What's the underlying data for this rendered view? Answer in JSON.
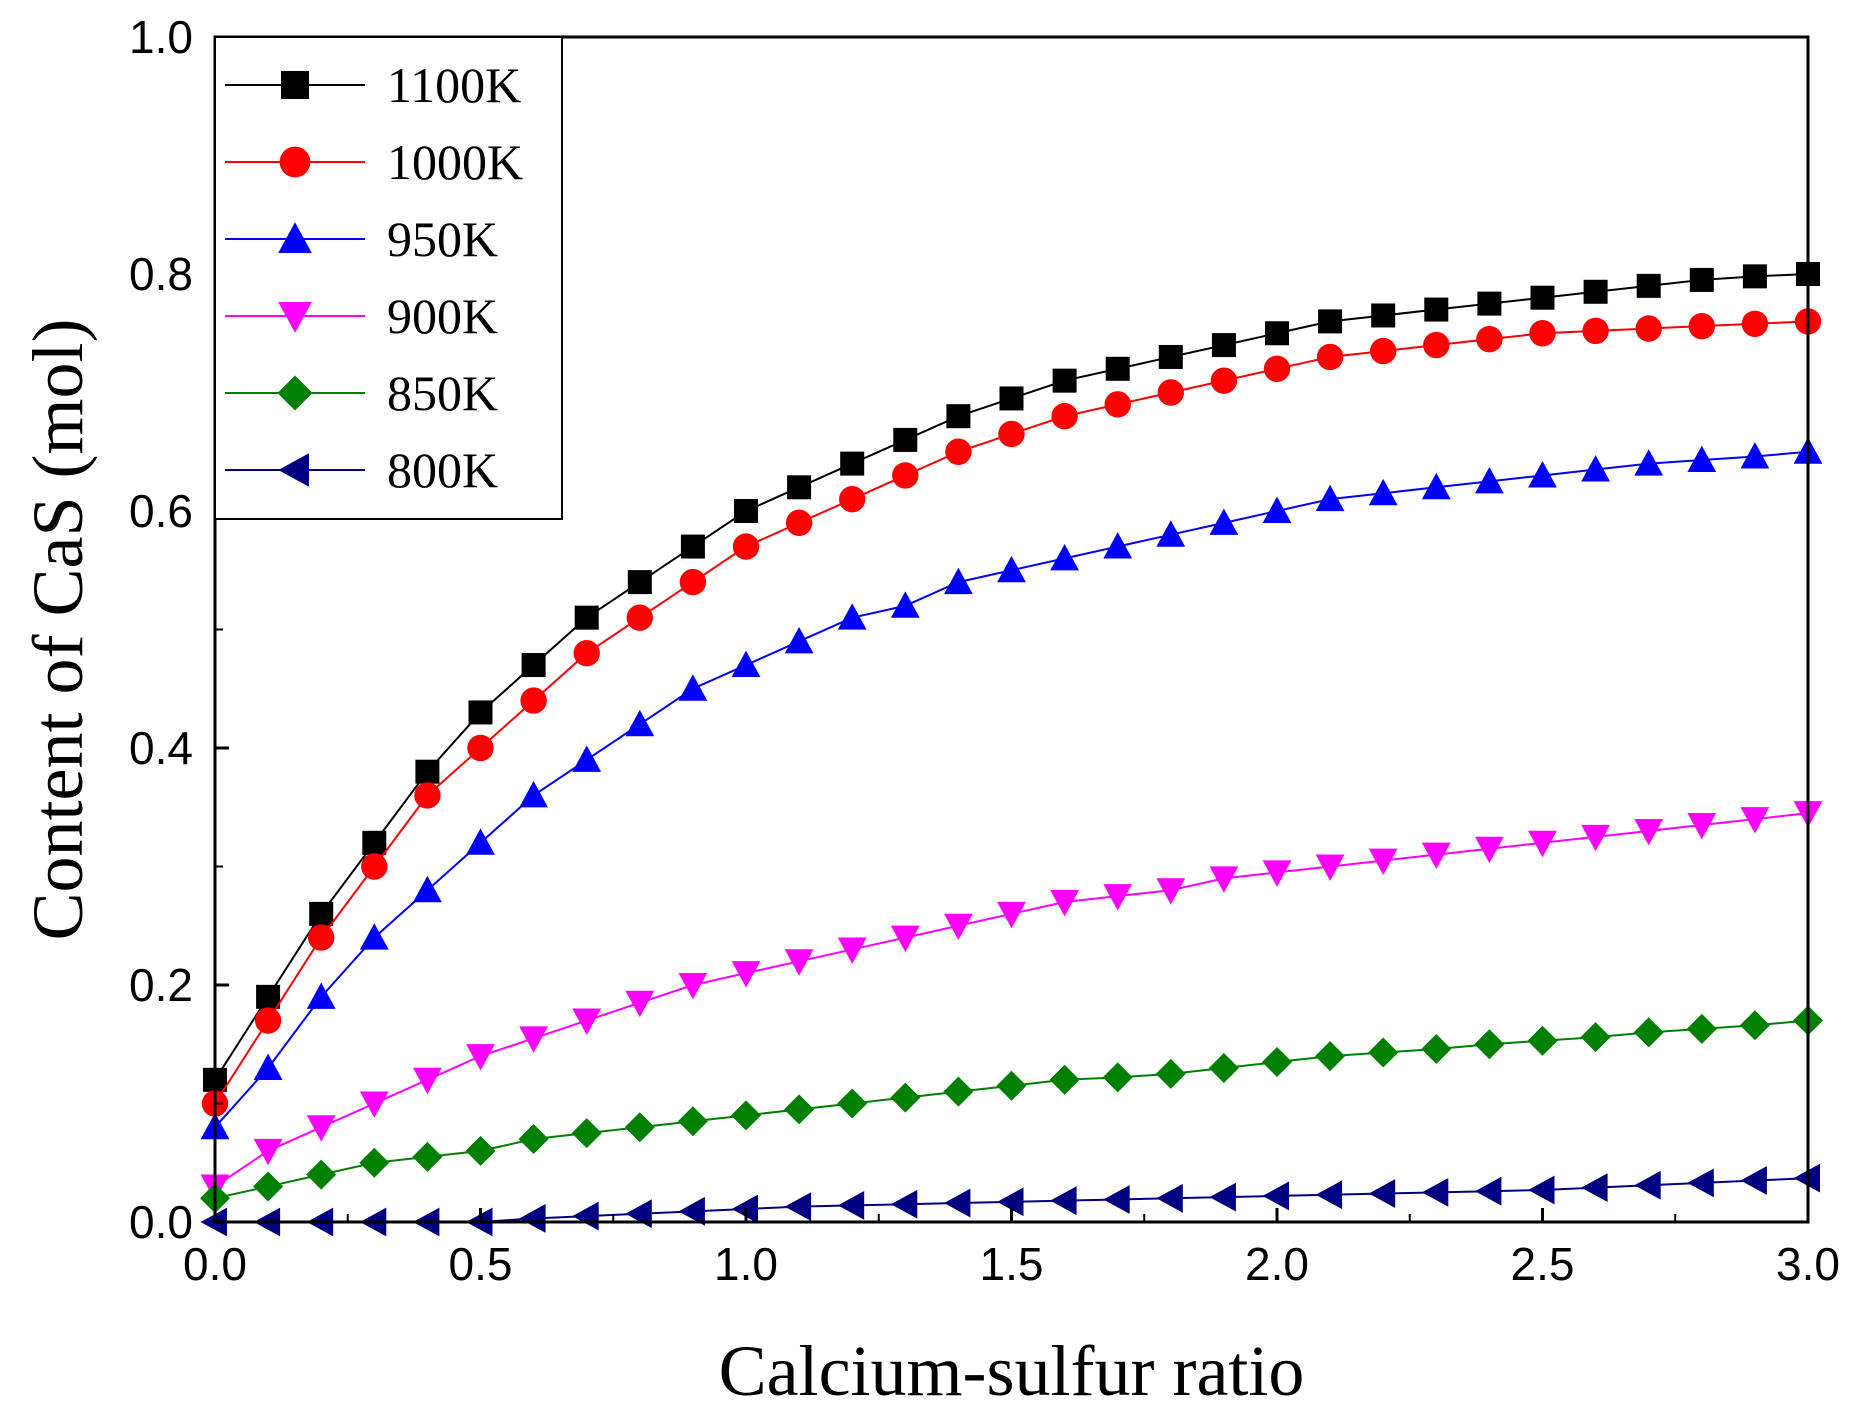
{
  "chart_data": {
    "type": "line",
    "title": "",
    "xlabel": "Calcium-sulfur ratio",
    "ylabel": "Content of CaS (mol)",
    "xlim": [
      0,
      3.0
    ],
    "ylim": [
      0,
      1.0
    ],
    "x_ticks": [
      "0.0",
      "0.5",
      "1.0",
      "1.5",
      "2.0",
      "2.5",
      "3.0"
    ],
    "y_ticks": [
      "0.0",
      "0.2",
      "0.4",
      "0.6",
      "0.8",
      "1.0"
    ],
    "grid": false,
    "legend_position": "top-left",
    "x": [
      0.0,
      0.1,
      0.2,
      0.3,
      0.4,
      0.5,
      0.6,
      0.7,
      0.8,
      0.9,
      1.0,
      1.1,
      1.2,
      1.3,
      1.4,
      1.5,
      1.6,
      1.7,
      1.8,
      1.9,
      2.0,
      2.1,
      2.2,
      2.3,
      2.4,
      2.5,
      2.6,
      2.7,
      2.8,
      2.9,
      3.0
    ],
    "series": [
      {
        "name": "1100K",
        "color": "#000000",
        "marker": "square",
        "values": [
          0.12,
          0.19,
          0.26,
          0.32,
          0.38,
          0.43,
          0.47,
          0.51,
          0.54,
          0.57,
          0.6,
          0.62,
          0.64,
          0.66,
          0.68,
          0.695,
          0.71,
          0.72,
          0.73,
          0.74,
          0.75,
          0.76,
          0.765,
          0.77,
          0.775,
          0.78,
          0.785,
          0.79,
          0.795,
          0.798,
          0.8
        ]
      },
      {
        "name": "1000K",
        "color": "#ff0000",
        "marker": "circle",
        "values": [
          0.1,
          0.17,
          0.24,
          0.3,
          0.36,
          0.4,
          0.44,
          0.48,
          0.51,
          0.54,
          0.57,
          0.59,
          0.61,
          0.63,
          0.65,
          0.665,
          0.68,
          0.69,
          0.7,
          0.71,
          0.72,
          0.73,
          0.735,
          0.74,
          0.745,
          0.75,
          0.752,
          0.754,
          0.756,
          0.758,
          0.76
        ]
      },
      {
        "name": "950K",
        "color": "#0000ff",
        "marker": "triangle-up",
        "values": [
          0.08,
          0.13,
          0.19,
          0.24,
          0.28,
          0.32,
          0.36,
          0.39,
          0.42,
          0.45,
          0.47,
          0.49,
          0.51,
          0.52,
          0.54,
          0.55,
          0.56,
          0.57,
          0.58,
          0.59,
          0.6,
          0.61,
          0.615,
          0.62,
          0.625,
          0.63,
          0.635,
          0.64,
          0.643,
          0.646,
          0.65
        ]
      },
      {
        "name": "900K",
        "color": "#ff00ff",
        "marker": "triangle-down",
        "values": [
          0.03,
          0.06,
          0.08,
          0.1,
          0.12,
          0.14,
          0.155,
          0.17,
          0.185,
          0.2,
          0.21,
          0.22,
          0.23,
          0.24,
          0.25,
          0.26,
          0.27,
          0.275,
          0.28,
          0.29,
          0.295,
          0.3,
          0.305,
          0.31,
          0.315,
          0.32,
          0.325,
          0.33,
          0.335,
          0.34,
          0.345
        ]
      },
      {
        "name": "850K",
        "color": "#008000",
        "marker": "diamond",
        "values": [
          0.02,
          0.03,
          0.04,
          0.05,
          0.055,
          0.06,
          0.07,
          0.075,
          0.08,
          0.085,
          0.09,
          0.095,
          0.1,
          0.105,
          0.11,
          0.115,
          0.12,
          0.122,
          0.125,
          0.13,
          0.135,
          0.14,
          0.143,
          0.146,
          0.15,
          0.153,
          0.156,
          0.16,
          0.163,
          0.166,
          0.17
        ]
      },
      {
        "name": "800K",
        "color": "#000080",
        "marker": "triangle-left",
        "values": [
          0.0,
          0.0,
          0.0,
          0.0,
          0.0,
          0.0,
          0.003,
          0.005,
          0.007,
          0.009,
          0.011,
          0.013,
          0.014,
          0.015,
          0.016,
          0.017,
          0.018,
          0.019,
          0.02,
          0.021,
          0.022,
          0.023,
          0.024,
          0.025,
          0.026,
          0.027,
          0.029,
          0.031,
          0.033,
          0.035,
          0.037
        ]
      }
    ]
  }
}
